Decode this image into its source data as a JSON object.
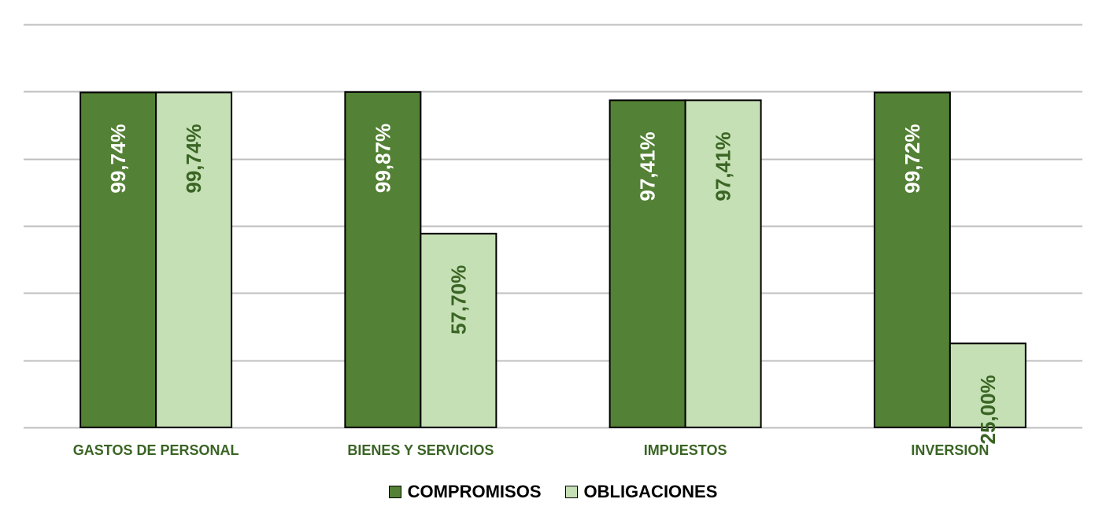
{
  "chart_data": {
    "type": "bar",
    "categories": [
      "GASTOS DE PERSONAL",
      "BIENES Y SERVICIOS",
      "IMPUESTOS",
      "INVERSION"
    ],
    "series": [
      {
        "name": "COMPROMISOS",
        "values": [
          99.74,
          99.87,
          97.41,
          99.72
        ],
        "labels": [
          "99,74%",
          "99,87%",
          "97,41%",
          "99,72%"
        ],
        "color": "#538135",
        "label_color": "#ffffff"
      },
      {
        "name": "OBLIGACIONES",
        "values": [
          99.74,
          57.7,
          97.41,
          25.0
        ],
        "labels": [
          "99,74%",
          "57,70%",
          "97,41%",
          "25,00%"
        ],
        "color": "#c5e0b4",
        "label_color": "#3a6424"
      }
    ],
    "ylim": [
      0,
      120
    ],
    "grid": true,
    "legend": "bottom-center",
    "colors": {
      "category_text": "#3a6424",
      "grid": "#bfbfbf"
    }
  }
}
